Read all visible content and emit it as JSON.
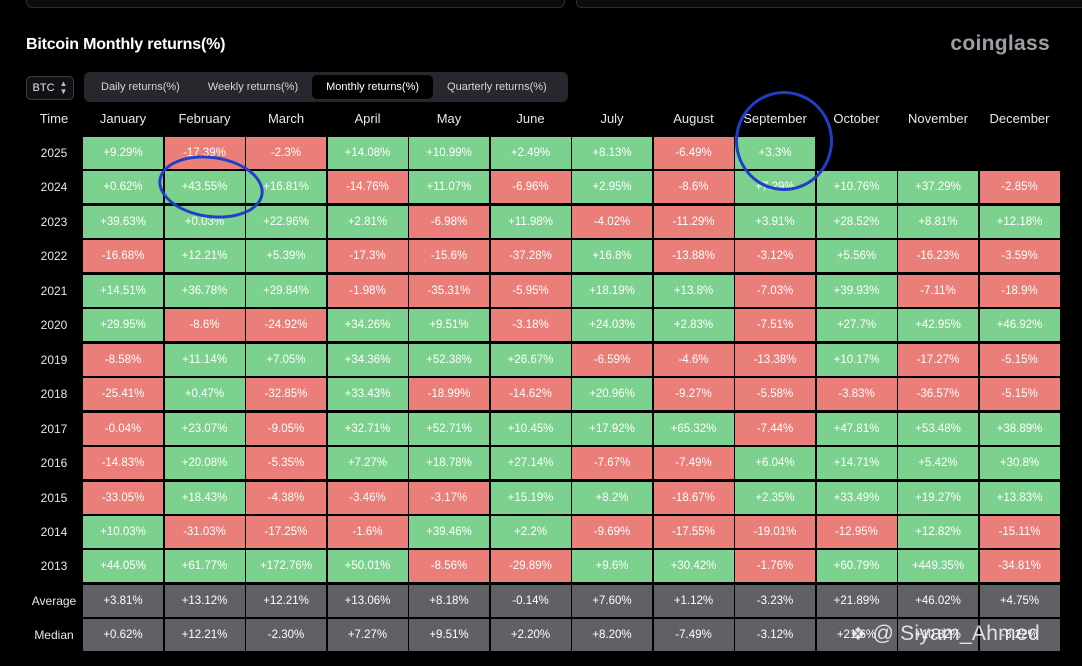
{
  "page": {
    "title": "Bitcoin Monthly returns(%)",
    "brand": "coinglass",
    "asset_selector": {
      "value": "BTC",
      "chevron_icon": "chevron-updown-icon"
    },
    "tabs": [
      {
        "label": "Daily returns(%)",
        "active": false
      },
      {
        "label": "Weekly returns(%)",
        "active": false
      },
      {
        "label": "Monthly returns(%)",
        "active": true
      },
      {
        "label": "Quarterly returns(%)",
        "active": false
      }
    ],
    "watermark": {
      "icon": "binance-icon",
      "at": "@",
      "text": "Siyam_Ahmed"
    }
  },
  "colors": {
    "positive": "#7dd18e",
    "negative": "#ea7f79",
    "stat": "#5f6165",
    "annotation": "#1f3fc8"
  },
  "chart_data": {
    "type": "table",
    "title": "Bitcoin Monthly returns(%)",
    "corner_label": "Time",
    "columns": [
      "January",
      "February",
      "March",
      "April",
      "May",
      "June",
      "July",
      "August",
      "September",
      "October",
      "November",
      "December"
    ],
    "rows": [
      {
        "label": "2025",
        "values": [
          "+9.29%",
          "-17.39%",
          "-2.3%",
          "+14.08%",
          "+10.99%",
          "+2.49%",
          "+8.13%",
          "-6.49%",
          "+3.3%",
          "",
          "",
          ""
        ]
      },
      {
        "label": "2024",
        "values": [
          "+0.62%",
          "+43.55%",
          "+16.81%",
          "-14.76%",
          "+11.07%",
          "-6.96%",
          "+2.95%",
          "-8.6%",
          "+7.29%",
          "+10.76%",
          "+37.29%",
          "-2.85%"
        ]
      },
      {
        "label": "2023",
        "values": [
          "+39.63%",
          "+0.03%",
          "+22.96%",
          "+2.81%",
          "-6.98%",
          "+11.98%",
          "-4.02%",
          "-11.29%",
          "+3.91%",
          "+28.52%",
          "+8.81%",
          "+12.18%"
        ]
      },
      {
        "label": "2022",
        "values": [
          "-16.68%",
          "+12.21%",
          "+5.39%",
          "-17.3%",
          "-15.6%",
          "-37.28%",
          "+16.8%",
          "-13.88%",
          "-3.12%",
          "+5.56%",
          "-16.23%",
          "-3.59%"
        ]
      },
      {
        "label": "2021",
        "values": [
          "+14.51%",
          "+36.78%",
          "+29.84%",
          "-1.98%",
          "-35.31%",
          "-5.95%",
          "+18.19%",
          "+13.8%",
          "-7.03%",
          "+39.93%",
          "-7.11%",
          "-18.9%"
        ]
      },
      {
        "label": "2020",
        "values": [
          "+29.95%",
          "-8.6%",
          "-24.92%",
          "+34.26%",
          "+9.51%",
          "-3.18%",
          "+24.03%",
          "+2.83%",
          "-7.51%",
          "+27.7%",
          "+42.95%",
          "+46.92%"
        ]
      },
      {
        "label": "2019",
        "values": [
          "-8.58%",
          "+11.14%",
          "+7.05%",
          "+34.36%",
          "+52.38%",
          "+26.67%",
          "-6.59%",
          "-4.6%",
          "-13.38%",
          "+10.17%",
          "-17.27%",
          "-5.15%"
        ]
      },
      {
        "label": "2018",
        "values": [
          "-25.41%",
          "+0.47%",
          "-32.85%",
          "+33.43%",
          "-18.99%",
          "-14.62%",
          "+20.96%",
          "-9.27%",
          "-5.58%",
          "-3.83%",
          "-36.57%",
          "-5.15%"
        ]
      },
      {
        "label": "2017",
        "values": [
          "-0.04%",
          "+23.07%",
          "-9.05%",
          "+32.71%",
          "+52.71%",
          "+10.45%",
          "+17.92%",
          "+65.32%",
          "-7.44%",
          "+47.81%",
          "+53.48%",
          "+38.89%"
        ]
      },
      {
        "label": "2016",
        "values": [
          "-14.83%",
          "+20.08%",
          "-5.35%",
          "+7.27%",
          "+18.78%",
          "+27.14%",
          "-7.67%",
          "-7.49%",
          "+6.04%",
          "+14.71%",
          "+5.42%",
          "+30.8%"
        ]
      },
      {
        "label": "2015",
        "values": [
          "-33.05%",
          "+18.43%",
          "-4.38%",
          "-3.46%",
          "-3.17%",
          "+15.19%",
          "+8.2%",
          "-18.67%",
          "+2.35%",
          "+33.49%",
          "+19.27%",
          "+13.83%"
        ]
      },
      {
        "label": "2014",
        "values": [
          "+10.03%",
          "-31.03%",
          "-17.25%",
          "-1.6%",
          "+39.46%",
          "+2.2%",
          "-9.69%",
          "-17.55%",
          "-19.01%",
          "-12.95%",
          "+12.82%",
          "-15.11%"
        ]
      },
      {
        "label": "2013",
        "values": [
          "+44.05%",
          "+61.77%",
          "+172.76%",
          "+50.01%",
          "-8.56%",
          "-29.89%",
          "+9.6%",
          "+30.42%",
          "-1.76%",
          "+60.79%",
          "+449.35%",
          "-34.81%"
        ]
      }
    ],
    "summary_rows": [
      {
        "label": "Average",
        "values": [
          "+3.81%",
          "+13.12%",
          "+12.21%",
          "+13.06%",
          "+8.18%",
          "-0.14%",
          "+7.60%",
          "+1.12%",
          "-3.23%",
          "+21.89%",
          "+46.02%",
          "+4.75%"
        ]
      },
      {
        "label": "Median",
        "values": [
          "+0.62%",
          "+12.21%",
          "-2.30%",
          "+7.27%",
          "+9.51%",
          "+2.20%",
          "+8.20%",
          "-7.49%",
          "-3.12%",
          "+21.6%",
          "+10.82%",
          "-3.22%"
        ]
      }
    ],
    "annotations": [
      {
        "type": "hand-drawn-circle",
        "target": "February 2024"
      },
      {
        "type": "hand-drawn-circle",
        "target": "September header and 2025"
      }
    ]
  }
}
